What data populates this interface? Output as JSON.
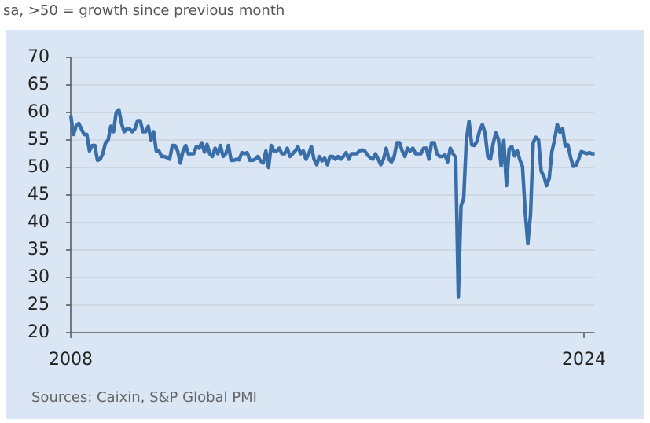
{
  "chart_data": {
    "type": "line",
    "subtitle": "sa, >50 = growth since previous month",
    "source": "Sources: Caixin, S&P Global PMI",
    "color": "#3a6ea8",
    "grid": true,
    "ylim": [
      20,
      70
    ],
    "yticks": [
      20,
      25,
      30,
      35,
      40,
      45,
      50,
      55,
      60,
      65,
      70
    ],
    "categories": [
      "2008",
      null,
      null,
      null,
      null,
      null,
      null,
      null,
      null,
      null,
      null,
      null,
      null,
      null,
      null,
      null,
      null,
      null,
      null,
      null,
      null,
      null,
      null,
      null,
      null,
      null,
      null,
      null,
      null,
      null,
      null,
      null,
      null,
      null,
      null,
      null,
      null,
      null,
      null,
      null,
      null,
      null,
      null,
      null,
      null,
      null,
      null,
      null,
      null,
      null,
      null,
      null,
      null,
      null,
      null,
      null,
      null,
      null,
      null,
      null,
      null,
      null,
      null,
      null,
      null,
      null,
      null,
      null,
      null,
      null,
      null,
      null,
      null,
      null,
      null,
      null,
      null,
      null,
      null,
      null,
      null,
      null,
      null,
      null,
      null,
      null,
      null,
      null,
      null,
      null,
      null,
      null,
      null,
      null,
      null,
      null,
      null,
      null,
      null,
      null,
      null,
      null,
      null,
      null,
      null,
      null,
      null,
      null,
      null,
      null,
      null,
      null,
      null,
      null,
      null,
      null,
      null,
      null,
      null,
      null,
      null,
      null,
      null,
      null,
      null,
      null,
      null,
      null,
      null,
      null,
      null,
      null,
      null,
      null,
      null,
      null,
      null,
      null,
      null,
      null,
      null,
      null,
      null,
      null,
      null,
      null,
      null,
      null,
      null,
      null,
      null,
      null,
      null,
      null,
      null,
      null,
      null,
      null,
      null,
      null,
      null,
      null,
      null,
      null,
      null,
      null,
      null,
      null,
      null,
      null,
      null,
      null,
      null,
      null,
      null,
      null,
      null,
      null,
      null,
      null,
      null,
      null,
      null,
      null,
      null,
      null,
      null,
      null,
      null,
      null,
      null,
      null,
      "2024",
      null,
      null,
      null,
      null
    ],
    "values": [
      59.5,
      56,
      57.5,
      58,
      57,
      56,
      56,
      53,
      54,
      54,
      51.3,
      51.5,
      52.5,
      54.5,
      55,
      57.5,
      56.5,
      60,
      60.5,
      58,
      56.5,
      57,
      57,
      56.5,
      57,
      58.5,
      58.5,
      56.5,
      56.5,
      57.5,
      55,
      56.5,
      53,
      53,
      52,
      52,
      51.8,
      51.5,
      54,
      54,
      53,
      50.8,
      53,
      54,
      52.5,
      52.5,
      52.5,
      53.8,
      53.5,
      54.5,
      52.8,
      54.2,
      52.5,
      52,
      53.5,
      52.5,
      54,
      52,
      52.5,
      54,
      51.3,
      51.3,
      51.5,
      51.4,
      52.7,
      52.5,
      52.7,
      51.3,
      51.3,
      51.5,
      52,
      51.2,
      50.8,
      53,
      50,
      54,
      53,
      53,
      53.5,
      52.5,
      52.5,
      53.5,
      52,
      52.5,
      53,
      53.8,
      52.5,
      53,
      51.5,
      52.4,
      53.8,
      51.5,
      50.5,
      52,
      51.2,
      51.7,
      50.5,
      52,
      52,
      51.5,
      52,
      51.5,
      52,
      52.7,
      51.5,
      52.5,
      52.5,
      52.5,
      53,
      53.2,
      53,
      52.3,
      51.8,
      51.5,
      52.5,
      51.5,
      50.5,
      51.5,
      53.5,
      51.5,
      51,
      52,
      54.5,
      54.5,
      53,
      52,
      53.5,
      53,
      53.5,
      52.5,
      52.5,
      52.5,
      53.5,
      53.5,
      51.5,
      54.5,
      54.5,
      52.5,
      52,
      52,
      52.3,
      51,
      53.5,
      52.5,
      51.8,
      26.5,
      43,
      44.4,
      55,
      58.4,
      54.1,
      54,
      54.8,
      56.8,
      57.8,
      56.3,
      52,
      51.5,
      54.3,
      56.3,
      55.1,
      50.3,
      54.9,
      46.7,
      53.4,
      53.8,
      52.1,
      53.1,
      51.4,
      50.2,
      42,
      36.2,
      41.4,
      54.5,
      55.5,
      55,
      49.3,
      48.4,
      46.7,
      48,
      52.9,
      55,
      57.8,
      56.4,
      57.1,
      53.9,
      54.1,
      51.8,
      50.2,
      50.4,
      51.5,
      52.9,
      52.7,
      52.5,
      52.7,
      52.5,
      52.5
    ]
  }
}
